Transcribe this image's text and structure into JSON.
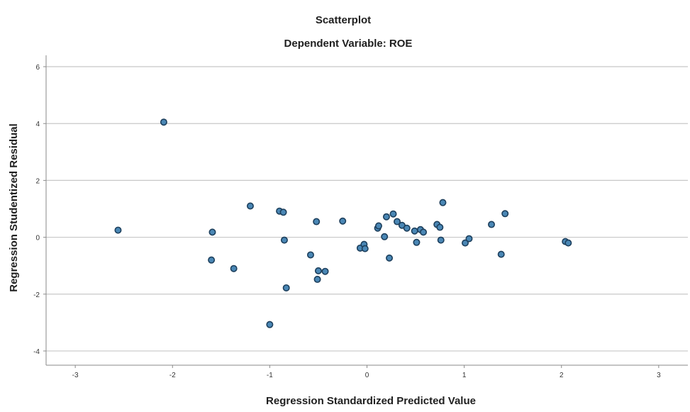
{
  "chart_data": {
    "type": "scatter",
    "title": "Scatterplot",
    "subtitle": "Dependent Variable: ROE",
    "xlabel": "Regression Standardized Predicted Value",
    "ylabel": "Regression Studentized Residual",
    "xlim": [
      -3.3,
      3.3
    ],
    "ylim": [
      -4.5,
      6.4
    ],
    "x_ticks": [
      {
        "value": -3,
        "label": "-3"
      },
      {
        "value": -2,
        "label": "-2"
      },
      {
        "value": -1,
        "label": "-1"
      },
      {
        "value": 0,
        "label": "0"
      },
      {
        "value": 1,
        "label": "1"
      },
      {
        "value": 2,
        "label": "2"
      },
      {
        "value": 3,
        "label": "3"
      }
    ],
    "y_ticks": [
      {
        "value": -4,
        "label": "-4"
      },
      {
        "value": -2,
        "label": "-2"
      },
      {
        "value": 0,
        "label": "0"
      },
      {
        "value": 2,
        "label": "2"
      },
      {
        "value": 4,
        "label": "4"
      },
      {
        "value": 6,
        "label": "6"
      }
    ],
    "horizontal_grid": true,
    "vertical_grid": false,
    "marker_color": "#4a87b5",
    "marker_edge_color": "#1d3f5c",
    "gridline_color": "#c8c8c8",
    "points": [
      {
        "x": -2.56,
        "y": 0.25
      },
      {
        "x": -2.09,
        "y": 4.05
      },
      {
        "x": -1.59,
        "y": 0.18
      },
      {
        "x": -1.6,
        "y": -0.8
      },
      {
        "x": -1.37,
        "y": -1.1
      },
      {
        "x": -1.2,
        "y": 1.1
      },
      {
        "x": -0.9,
        "y": 0.92
      },
      {
        "x": -0.86,
        "y": 0.88
      },
      {
        "x": -0.85,
        "y": -0.1
      },
      {
        "x": -0.83,
        "y": -1.78
      },
      {
        "x": -1.0,
        "y": -3.07
      },
      {
        "x": -0.58,
        "y": -0.62
      },
      {
        "x": -0.52,
        "y": 0.55
      },
      {
        "x": -0.5,
        "y": -1.18
      },
      {
        "x": -0.51,
        "y": -1.48
      },
      {
        "x": -0.43,
        "y": -1.2
      },
      {
        "x": -0.25,
        "y": 0.57
      },
      {
        "x": -0.07,
        "y": -0.38
      },
      {
        "x": -0.03,
        "y": -0.25
      },
      {
        "x": -0.02,
        "y": -0.4
      },
      {
        "x": 0.11,
        "y": 0.32
      },
      {
        "x": 0.12,
        "y": 0.4
      },
      {
        "x": 0.18,
        "y": 0.02
      },
      {
        "x": 0.2,
        "y": 0.72
      },
      {
        "x": 0.23,
        "y": -0.73
      },
      {
        "x": 0.27,
        "y": 0.82
      },
      {
        "x": 0.31,
        "y": 0.55
      },
      {
        "x": 0.36,
        "y": 0.42
      },
      {
        "x": 0.41,
        "y": 0.32
      },
      {
        "x": 0.49,
        "y": 0.22
      },
      {
        "x": 0.51,
        "y": -0.18
      },
      {
        "x": 0.55,
        "y": 0.27
      },
      {
        "x": 0.58,
        "y": 0.18
      },
      {
        "x": 0.72,
        "y": 0.45
      },
      {
        "x": 0.75,
        "y": 0.35
      },
      {
        "x": 0.76,
        "y": -0.1
      },
      {
        "x": 0.78,
        "y": 1.22
      },
      {
        "x": 1.01,
        "y": -0.2
      },
      {
        "x": 1.05,
        "y": -0.05
      },
      {
        "x": 1.28,
        "y": 0.45
      },
      {
        "x": 1.38,
        "y": -0.6
      },
      {
        "x": 1.42,
        "y": 0.83
      },
      {
        "x": 2.04,
        "y": -0.15
      },
      {
        "x": 2.07,
        "y": -0.2
      }
    ]
  }
}
